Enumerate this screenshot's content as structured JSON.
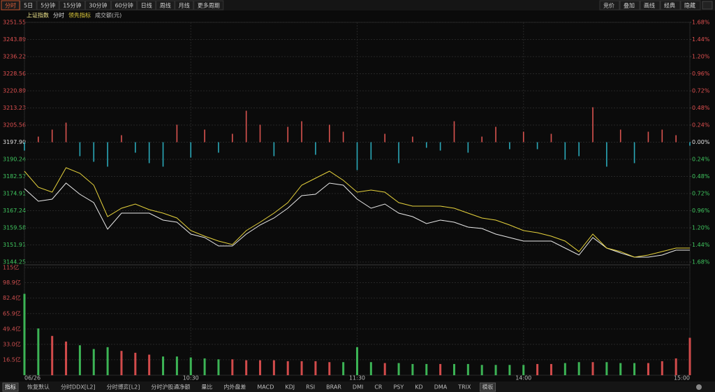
{
  "toolbar": {
    "tabs": [
      "分时",
      "5日",
      "5分钟",
      "15分钟",
      "30分钟",
      "60分钟",
      "日线",
      "周线",
      "月线",
      "更多周期"
    ],
    "right_buttons": [
      "竞价",
      "叠加",
      "画线",
      "经典",
      "隐藏"
    ]
  },
  "legend": {
    "mode": "分时",
    "volume": "成交额(元)"
  },
  "bottom_tabs": [
    "指标",
    "恢复默认",
    "分时DDX[L2]",
    "分时博弈[L2]",
    "分时沪股通净额",
    "量比",
    "内外盘差",
    "MACD",
    "KDJ",
    "RSI",
    "BRAR",
    "DMI",
    "CR",
    "PSY",
    "KD",
    "DMA",
    "TRIX",
    "模板"
  ],
  "chart_data": [
    {
      "type": "line",
      "x": [
        0,
        5,
        10,
        15,
        20,
        25,
        30,
        35,
        40,
        45,
        50,
        55,
        60,
        65,
        70,
        75,
        80,
        85,
        90,
        95,
        100,
        105,
        110,
        115,
        120,
        125,
        130,
        135,
        140,
        145,
        150,
        155,
        160,
        165,
        170,
        175,
        180,
        185,
        190,
        195,
        200,
        205,
        210,
        215,
        220,
        225,
        230,
        235,
        240
      ],
      "xlim": [
        0,
        240
      ],
      "ylim": [
        3144.25,
        3251.55
      ],
      "yticks": [
        3251.55,
        3243.89,
        3236.22,
        3228.56,
        3220.89,
        3213.23,
        3205.56,
        {
          "value": 3197.9,
          "label": "3197.90"
        },
        3190.24,
        3182.57,
        3174.91,
        3167.24,
        3159.58,
        3151.91,
        3144.25
      ],
      "y2lim": [
        -1.68,
        1.68
      ],
      "y2ticks": [
        {
          "value": 1.68,
          "label": "1.68%"
        },
        {
          "value": 1.44,
          "label": "1.44%"
        },
        {
          "value": 1.2,
          "label": "1.20%"
        },
        {
          "value": 0.96,
          "label": "0.96%"
        },
        {
          "value": 0.72,
          "label": "0.72%"
        },
        {
          "value": 0.48,
          "label": "0.48%"
        },
        {
          "value": 0.24,
          "label": "0.24%"
        },
        {
          "value": 0,
          "label": "0.00%"
        },
        {
          "value": -0.24,
          "label": "0.24%"
        },
        {
          "value": -0.48,
          "label": "0.48%"
        },
        {
          "value": -0.72,
          "label": "0.72%"
        },
        {
          "value": -0.96,
          "label": "0.96%"
        },
        {
          "value": -1.2,
          "label": "1.20%"
        },
        {
          "value": -1.44,
          "label": "1.44%"
        },
        {
          "value": -1.68,
          "label": "1.68%"
        }
      ],
      "grid": true,
      "series": [
        {
          "name": "上证指数",
          "color": "#e8e8e8",
          "values": [
            3177.09,
            3171.46,
            3172.4,
            3179.6,
            3174.59,
            3170.84,
            3158.95,
            3166.15,
            3166.15,
            3166.15,
            3163.02,
            3162.08,
            3156.76,
            3155.2,
            3151.44,
            3151.44,
            3156.76,
            3160.83,
            3163.96,
            3168.34,
            3173.97,
            3174.59,
            3179.6,
            3178.66,
            3172.4,
            3168.34,
            3170.21,
            3166.15,
            3164.58,
            3161.45,
            3163.02,
            3162.08,
            3159.89,
            3159.26,
            3156.76,
            3155.2,
            3153.63,
            3153.63,
            3153.63,
            3150.51,
            3147.38,
            3155.2,
            3150.51,
            3148.32,
            3146.44,
            3146.44,
            3147.38,
            3149.57,
            3149.57
          ]
        },
        {
          "name": "领先指标",
          "color": "#e6d23c",
          "values": [
            3184.91,
            3177.72,
            3175.53,
            3186.48,
            3183.98,
            3178.66,
            3164.58,
            3168.34,
            3170.21,
            3167.71,
            3166.15,
            3163.96,
            3158.33,
            3155.82,
            3153.63,
            3152.07,
            3158.33,
            3162.08,
            3166.15,
            3170.84,
            3178.66,
            3181.79,
            3184.91,
            3180.85,
            3175.53,
            3176.47,
            3175.53,
            3170.84,
            3169.27,
            3169.27,
            3169.27,
            3168.34,
            3166.15,
            3163.96,
            3163.02,
            3160.83,
            3158.33,
            3157.39,
            3155.82,
            3153.63,
            3148.94,
            3156.76,
            3150.51,
            3148.94,
            3146.44,
            3147.38,
            3148.94,
            3150.51,
            3150.51
          ]
        }
      ],
      "bars": {
        "up_color": "#d9534f",
        "down_color": "#2aa8b8",
        "values": [
          -3.75,
          2.5,
          5.63,
          8.76,
          -6.26,
          -8.76,
          -10.95,
          3.13,
          -4.69,
          -9.38,
          -10.95,
          7.82,
          -6.88,
          5.63,
          -4.69,
          3.75,
          14.08,
          7.82,
          -6.26,
          6.88,
          9.38,
          -5.63,
          7.82,
          4.69,
          -12.51,
          -7.82,
          3.75,
          -9.38,
          2.5,
          -2.5,
          -3.75,
          9.38,
          -4.69,
          2.5,
          6.88,
          -3.13,
          4.69,
          -3.13,
          3.75,
          -7.82,
          -6.26,
          15.64,
          -10.95,
          5.63,
          -9.38,
          4.69,
          5.63,
          3.13,
          -1.56
        ]
      }
    },
    {
      "type": "bar",
      "x": [
        0,
        5,
        10,
        15,
        20,
        25,
        30,
        35,
        40,
        45,
        50,
        55,
        60,
        65,
        70,
        75,
        80,
        85,
        90,
        95,
        100,
        105,
        110,
        115,
        120,
        125,
        130,
        135,
        140,
        145,
        150,
        155,
        160,
        165,
        170,
        175,
        180,
        185,
        190,
        195,
        200,
        205,
        210,
        215,
        220,
        225,
        230,
        235,
        240
      ],
      "xlim": [
        0,
        240
      ],
      "xticks": [
        {
          "value": 0,
          "label": "06/26"
        },
        {
          "value": 60,
          "label": "10:30"
        },
        {
          "value": 120,
          "label": "11:30"
        },
        {
          "value": 180,
          "label": "14:00"
        },
        {
          "value": 240,
          "label": "15:00"
        }
      ],
      "ylim": [
        0,
        115
      ],
      "yticks": [
        {
          "value": 115,
          "label": "115亿"
        },
        {
          "value": 98.9,
          "label": "98.9亿"
        },
        {
          "value": 82.4,
          "label": "82.4亿"
        },
        {
          "value": 65.9,
          "label": "65.9亿"
        },
        {
          "value": 49.4,
          "label": "49.4亿"
        },
        {
          "value": 33.0,
          "label": "33.0亿"
        },
        {
          "value": 16.5,
          "label": "16.5亿"
        }
      ],
      "grid": true,
      "up_color": "#d24b4b",
      "down_color": "#3cb455",
      "values": [
        87,
        50,
        42,
        36,
        32,
        28,
        30,
        26,
        24,
        22,
        20,
        20,
        19,
        18,
        17,
        17,
        16,
        16,
        16,
        15,
        15,
        15,
        14,
        14,
        30,
        14,
        13,
        13,
        12,
        12,
        12,
        12,
        12,
        11,
        11,
        11,
        11,
        12,
        12,
        13,
        14,
        14,
        14,
        13,
        13,
        13,
        15,
        18,
        40
      ]
    }
  ]
}
